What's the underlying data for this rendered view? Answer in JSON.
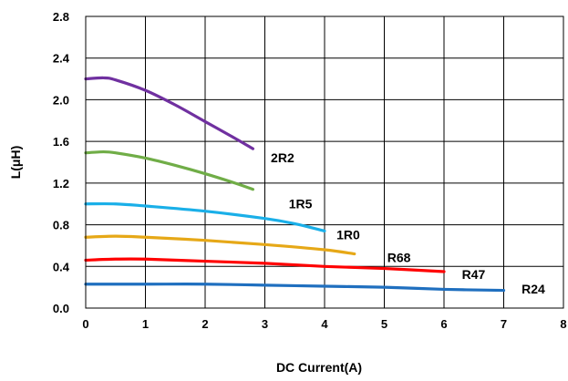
{
  "chart_data": {
    "type": "line",
    "title": "",
    "xlabel": "DC Current(A)",
    "ylabel": "L(μH)",
    "xlim": [
      0,
      8
    ],
    "ylim": [
      0.0,
      2.8
    ],
    "xticks": [
      "0",
      "1",
      "2",
      "3",
      "4",
      "5",
      "6",
      "7",
      "8"
    ],
    "yticks": [
      "0.0",
      "0.4",
      "0.8",
      "1.2",
      "1.6",
      "2.0",
      "2.4",
      "2.8"
    ],
    "grid": true,
    "legend": "none",
    "series": [
      {
        "name": "2R2",
        "color": "#7030A0",
        "x": [
          0,
          0.3,
          0.5,
          1.0,
          1.5,
          2.0,
          2.5,
          2.8
        ],
        "y": [
          2.2,
          2.21,
          2.19,
          2.09,
          1.95,
          1.79,
          1.63,
          1.53
        ]
      },
      {
        "name": "1R5",
        "color": "#70AD47",
        "x": [
          0,
          0.3,
          0.5,
          1.0,
          1.5,
          2.0,
          2.5,
          2.8
        ],
        "y": [
          1.49,
          1.5,
          1.49,
          1.44,
          1.37,
          1.29,
          1.2,
          1.14
        ]
      },
      {
        "name": "1R0",
        "color": "#1AAFE8",
        "x": [
          0,
          0.5,
          1.0,
          2.0,
          3.0,
          3.5,
          4.0
        ],
        "y": [
          1.0,
          1.0,
          0.98,
          0.93,
          0.86,
          0.81,
          0.74
        ]
      },
      {
        "name": "R68",
        "color": "#E6A817",
        "x": [
          0,
          0.5,
          1.0,
          2.0,
          3.0,
          4.0,
          4.5
        ],
        "y": [
          0.68,
          0.69,
          0.68,
          0.65,
          0.61,
          0.56,
          0.52
        ]
      },
      {
        "name": "R47",
        "color": "#FF0000",
        "x": [
          0,
          0.5,
          1.0,
          2.0,
          3.0,
          4.0,
          5.0,
          6.0
        ],
        "y": [
          0.46,
          0.47,
          0.47,
          0.45,
          0.43,
          0.4,
          0.38,
          0.35
        ]
      },
      {
        "name": "R24",
        "color": "#1F6FBF",
        "x": [
          0,
          1.0,
          2.0,
          3.0,
          4.0,
          5.0,
          6.0,
          7.0
        ],
        "y": [
          0.23,
          0.23,
          0.23,
          0.22,
          0.21,
          0.2,
          0.18,
          0.17
        ]
      }
    ],
    "annotations": [
      {
        "text": "2R2",
        "x": 3.1,
        "y": 1.4
      },
      {
        "text": "1R5",
        "x": 3.4,
        "y": 0.96
      },
      {
        "text": "1R0",
        "x": 4.2,
        "y": 0.66
      },
      {
        "text": "R68",
        "x": 5.05,
        "y": 0.44
      },
      {
        "text": "R47",
        "x": 6.3,
        "y": 0.28
      },
      {
        "text": "R24",
        "x": 7.3,
        "y": 0.14
      }
    ]
  }
}
